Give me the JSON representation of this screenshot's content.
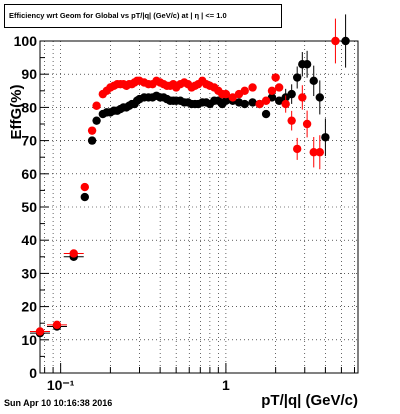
{
  "chart_data": {
    "type": "scatter",
    "title": "Efficiency wrt Geom for Global vs pT/|q| (GeV/c) at | η | <= 1.0",
    "xlabel": "pT/|q| (GeV/c)",
    "ylabel": "EffG(%)",
    "x_scale": "log",
    "xlim": [
      0.075,
      6.3
    ],
    "ylim": [
      0,
      100
    ],
    "grid": true,
    "legend": "none",
    "x_tick_labels": [
      "10⁻¹",
      "1"
    ],
    "y_tick_labels": [
      "0",
      "10",
      "20",
      "30",
      "40",
      "50",
      "60",
      "70",
      "80",
      "90",
      "100"
    ],
    "series": [
      {
        "color": "#000000",
        "x": [
          0.075,
          0.095,
          0.12,
          0.14,
          0.155,
          0.165,
          0.18,
          0.19,
          0.2,
          0.21,
          0.22,
          0.23,
          0.24,
          0.25,
          0.26,
          0.27,
          0.28,
          0.29,
          0.3,
          0.32,
          0.34,
          0.36,
          0.38,
          0.4,
          0.42,
          0.44,
          0.46,
          0.48,
          0.5,
          0.53,
          0.56,
          0.59,
          0.62,
          0.65,
          0.68,
          0.72,
          0.76,
          0.8,
          0.85,
          0.9,
          0.95,
          1.0,
          1.1,
          1.2,
          1.3,
          1.45,
          1.6,
          1.75,
          1.9,
          2.1,
          2.3,
          2.5,
          2.7,
          2.9,
          3.1,
          3.4,
          3.7,
          4.0,
          5.3
        ],
        "y": [
          12,
          14,
          35,
          53,
          70,
          76,
          78,
          78.5,
          78.5,
          79,
          79,
          79.5,
          80,
          80,
          80.5,
          81,
          81,
          82,
          82.5,
          83,
          83,
          83,
          83.5,
          83,
          83,
          82.5,
          82,
          82,
          82,
          82,
          81.5,
          81.5,
          81,
          81,
          81,
          81.5,
          81.5,
          81,
          82,
          82,
          81,
          82,
          82,
          81.5,
          81,
          81.5,
          81,
          78,
          83,
          82,
          83,
          84,
          89,
          93,
          93,
          88,
          83,
          71,
          100
        ]
      },
      {
        "color": "#ff0000",
        "x": [
          0.075,
          0.095,
          0.12,
          0.14,
          0.155,
          0.165,
          0.18,
          0.19,
          0.2,
          0.21,
          0.22,
          0.23,
          0.24,
          0.25,
          0.26,
          0.27,
          0.28,
          0.29,
          0.3,
          0.32,
          0.34,
          0.36,
          0.38,
          0.4,
          0.42,
          0.44,
          0.46,
          0.48,
          0.5,
          0.53,
          0.56,
          0.59,
          0.62,
          0.65,
          0.68,
          0.72,
          0.76,
          0.8,
          0.85,
          0.9,
          0.95,
          1.0,
          1.1,
          1.2,
          1.3,
          1.45,
          1.6,
          1.75,
          1.9,
          2.0,
          2.1,
          2.3,
          2.5,
          2.7,
          2.9,
          3.1,
          3.4,
          3.7,
          4.6
        ],
        "y": [
          12.5,
          14.5,
          36,
          56,
          73,
          80.5,
          84,
          85,
          86,
          86.5,
          87,
          87,
          87,
          86.5,
          87,
          87,
          87.5,
          88,
          88,
          87.5,
          87,
          87,
          88,
          87.5,
          87,
          86.5,
          86.5,
          87,
          86,
          87,
          87.5,
          87,
          86,
          86.5,
          87,
          88,
          87,
          86.5,
          86,
          85,
          84,
          84,
          83,
          84,
          85,
          86,
          81,
          82,
          85,
          89,
          86,
          81,
          76,
          67.5,
          83,
          75,
          66.5,
          66.5,
          100
        ]
      }
    ]
  },
  "footer_text": "Sun Apr 10 10:16:38 2016"
}
